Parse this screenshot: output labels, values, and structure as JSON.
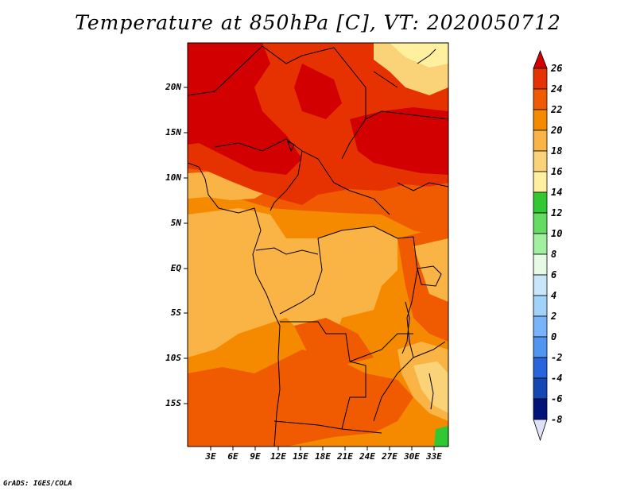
{
  "title": "Temperature at 850hPa [C], VT: 2020050712",
  "credit": "GrADS: IGES/COLA",
  "map": {
    "variable": "Temperature at 850hPa",
    "units": "C",
    "valid_time": "2020050712",
    "lat_ticks": [
      "20N",
      "15N",
      "10N",
      "5N",
      "EQ",
      "5S",
      "10S",
      "15S"
    ],
    "lon_ticks": [
      "3E",
      "6E",
      "9E",
      "12E",
      "15E",
      "18E",
      "21E",
      "24E",
      "27E",
      "30E",
      "33E"
    ]
  },
  "colorbar": {
    "levels": [
      "26",
      "24",
      "22",
      "20",
      "18",
      "16",
      "14",
      "12",
      "10",
      "8",
      "6",
      "4",
      "2",
      "0",
      "-2",
      "-4",
      "-6",
      "-8"
    ],
    "colors": [
      "#d20000",
      "#e63200",
      "#f05a00",
      "#f58a00",
      "#fab446",
      "#fad278",
      "#fff0a0",
      "#32c832",
      "#64dc64",
      "#a0f0a0",
      "#e6fae6",
      "#c8e6fa",
      "#a0d2fa",
      "#78b4fa",
      "#5096f0",
      "#2864dc",
      "#1446b4",
      "#0a2896",
      "#00147a",
      "#e0e0f8"
    ]
  },
  "palette": {
    "dark_red": "#d20000",
    "red_orange": "#e63200",
    "orange_red": "#f05a00",
    "orange": "#f58a00",
    "light_orange": "#fab446",
    "pale_yellow": "#fad278",
    "cream": "#fff0a0",
    "green": "#32c832"
  }
}
